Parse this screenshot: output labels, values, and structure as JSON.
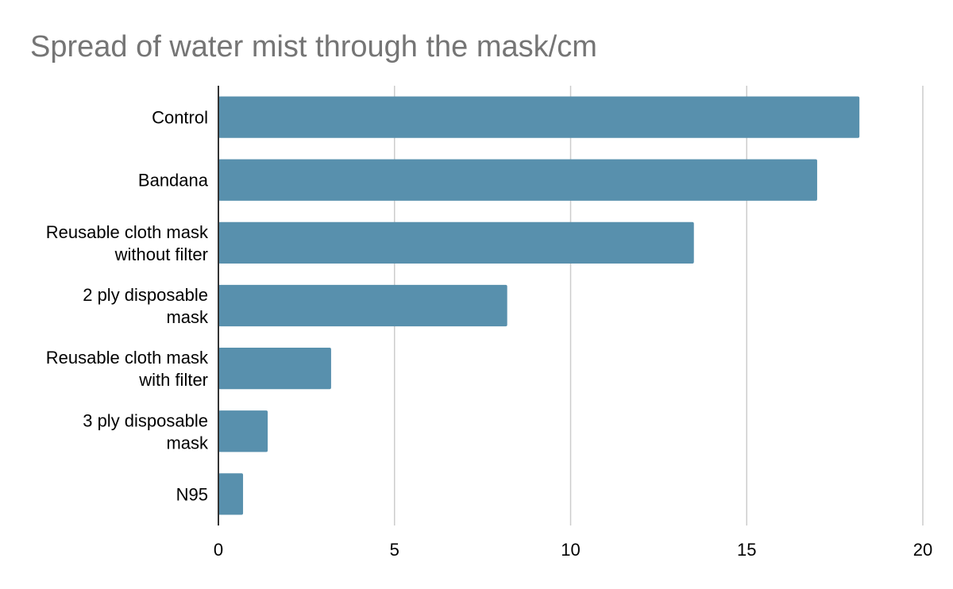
{
  "chart_data": {
    "type": "bar",
    "orientation": "horizontal",
    "title": "Spread of water mist through the mask/cm",
    "xlabel": "",
    "ylabel": "",
    "categories": [
      "Control",
      "Bandana",
      "Reusable cloth mask without filter",
      "2 ply disposable mask",
      "Reusable cloth mask with filter",
      "3 ply disposable mask",
      "N95"
    ],
    "category_lines": [
      [
        "Control"
      ],
      [
        "Bandana"
      ],
      [
        "Reusable cloth mask",
        "without filter"
      ],
      [
        "2 ply disposable",
        "mask"
      ],
      [
        "Reusable cloth mask",
        "with filter"
      ],
      [
        "3 ply disposable",
        "mask"
      ],
      [
        "N95"
      ]
    ],
    "values": [
      18.2,
      17.0,
      13.5,
      8.2,
      3.2,
      1.4,
      0.7
    ],
    "xlim": [
      0,
      20
    ],
    "xticks": [
      "0",
      "5",
      "10",
      "15",
      "20"
    ],
    "grid": true,
    "legend": "none",
    "colors": {
      "bar": "#5890ad",
      "grid": "#cccccc",
      "axis": "#333333"
    }
  }
}
